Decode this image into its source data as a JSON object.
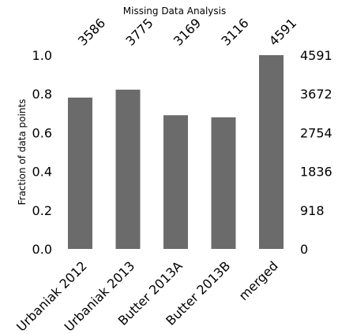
{
  "chart_data": {
    "type": "bar",
    "title": "Missing Data Analysis",
    "ylabel": "Fraction of data points",
    "categories": [
      "Urbaniak 2012",
      "Urbaniak 2013",
      "Butter 2013A",
      "Butter 2013B",
      "merged"
    ],
    "counts": [
      "3586",
      "3775",
      "3169",
      "3116",
      "4591"
    ],
    "values": [
      0.781,
      0.822,
      0.69,
      0.679,
      1.0
    ],
    "ylim": [
      0,
      1.0
    ],
    "yticks_left": [
      "0.0",
      "0.2",
      "0.4",
      "0.6",
      "0.8",
      "1.0"
    ],
    "yticks_right": [
      "0",
      "918",
      "1836",
      "2754",
      "3672",
      "4591"
    ],
    "bar_color": "#6b6b6b",
    "grid": false
  }
}
